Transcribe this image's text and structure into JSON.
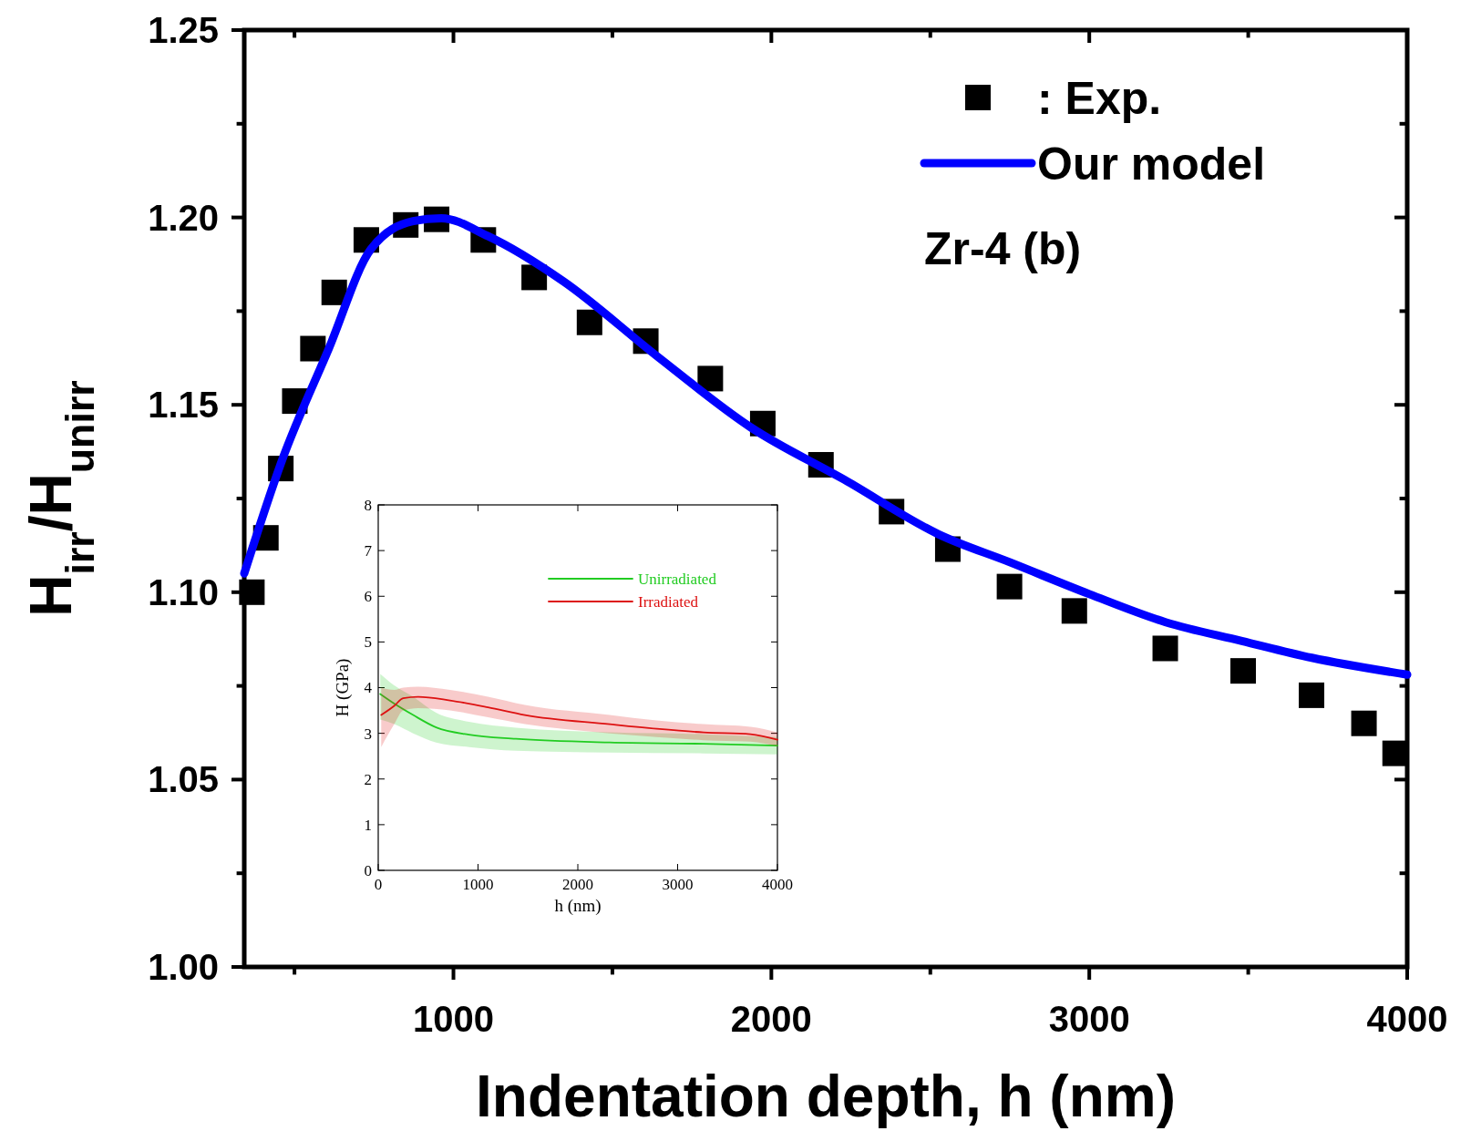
{
  "chart_data": [
    {
      "type": "scatter",
      "xlabel": "Indentation depth, h (nm)",
      "ylabel": "H$_{irr}$/H$_{unirr}$",
      "xlim": [
        342,
        4000
      ],
      "ylim": [
        1.0,
        1.25
      ],
      "xticks": [
        {
          "value": 500,
          "label": null
        },
        1000,
        {
          "value": 1500,
          "label": null
        },
        2000,
        {
          "value": 2500,
          "label": null
        },
        3000,
        {
          "value": 3500,
          "label": null
        },
        4000
      ],
      "yticks": [
        {
          "value": 1.0,
          "label": "1.00"
        },
        {
          "value": 1.025,
          "label": null
        },
        {
          "value": 1.05,
          "label": "1.05"
        },
        {
          "value": 1.075,
          "label": null
        },
        {
          "value": 1.1,
          "label": "1.10"
        },
        {
          "value": 1.125,
          "label": null
        },
        {
          "value": 1.15,
          "label": "1.15"
        },
        {
          "value": 1.175,
          "label": null
        },
        {
          "value": 1.2,
          "label": "1.20"
        },
        {
          "value": 1.225,
          "label": null
        },
        {
          "value": 1.25,
          "label": "1.25"
        }
      ],
      "legend": "top right",
      "annotations": [
        "Zr-4 (b)"
      ],
      "series": [
        {
          "name": ": Exp.",
          "marker": "square",
          "color": "#000000",
          "x": [
            366,
            410,
            457,
            501,
            558,
            625,
            726,
            850,
            947,
            1094,
            1254,
            1428,
            1605,
            1808,
            1973,
            2156,
            2378,
            2555,
            2749,
            2953,
            3239,
            3484,
            3699,
            3864,
            3962
          ],
          "values": [
            1.1,
            1.1145,
            1.133,
            1.151,
            1.165,
            1.18,
            1.194,
            1.198,
            1.1995,
            1.194,
            1.184,
            1.172,
            1.167,
            1.157,
            1.145,
            1.134,
            1.1215,
            1.1115,
            1.1015,
            1.095,
            1.085,
            1.079,
            1.0725,
            1.065,
            1.057
          ]
        },
        {
          "name": "Our model",
          "type": "line",
          "color": "#0000ff",
          "x": [
            342,
            460,
            608,
            740,
            873,
            962,
            1109,
            1345,
            1640,
            1935,
            2230,
            2525,
            2750,
            3000,
            3240,
            3480,
            3700,
            4000
          ],
          "values": [
            1.105,
            1.135,
            1.165,
            1.1915,
            1.199,
            1.1998,
            1.195,
            1.183,
            1.163,
            1.144,
            1.13,
            1.1155,
            1.108,
            1.0995,
            1.092,
            1.087,
            1.0825,
            1.078
          ]
        }
      ]
    },
    {
      "type": "line",
      "xlabel": "h (nm)",
      "ylabel": "H (GPa)",
      "xlim": [
        0,
        4000
      ],
      "ylim": [
        0,
        8
      ],
      "xticks": [
        0,
        1000,
        2000,
        3000,
        4000
      ],
      "yticks": [
        0,
        1,
        2,
        3,
        4,
        5,
        6,
        7,
        8
      ],
      "legend": "top right",
      "line_style": "solid",
      "series": [
        {
          "name": "Unirradiated",
          "color": "#22cc22",
          "x": [
            20,
            160,
            350,
            580,
            910,
            1380,
            2320,
            3260,
            4000
          ],
          "values": [
            3.86,
            3.65,
            3.4,
            3.13,
            2.97,
            2.88,
            2.8,
            2.77,
            2.73
          ],
          "lower": [
            3.3,
            3.2,
            3.0,
            2.8,
            2.7,
            2.62,
            2.58,
            2.56,
            2.54
          ],
          "upper": [
            4.3,
            4.05,
            3.8,
            3.45,
            3.25,
            3.12,
            3.02,
            2.98,
            2.92
          ]
        },
        {
          "name": "Irradiated",
          "color": "#dd1111",
          "x": [
            30,
            160,
            250,
            400,
            720,
            1100,
            1470,
            2320,
            2790,
            3260,
            3730,
            4000
          ],
          "values": [
            3.4,
            3.6,
            3.77,
            3.8,
            3.72,
            3.57,
            3.4,
            3.2,
            3.1,
            3.02,
            2.98,
            2.86
          ],
          "lower": [
            2.7,
            3.2,
            3.5,
            3.55,
            3.5,
            3.35,
            3.2,
            3.0,
            2.92,
            2.85,
            2.82,
            2.72
          ],
          "upper": [
            4.0,
            3.95,
            4.0,
            4.02,
            3.95,
            3.8,
            3.62,
            3.4,
            3.28,
            3.2,
            3.14,
            3.02
          ]
        }
      ]
    }
  ]
}
